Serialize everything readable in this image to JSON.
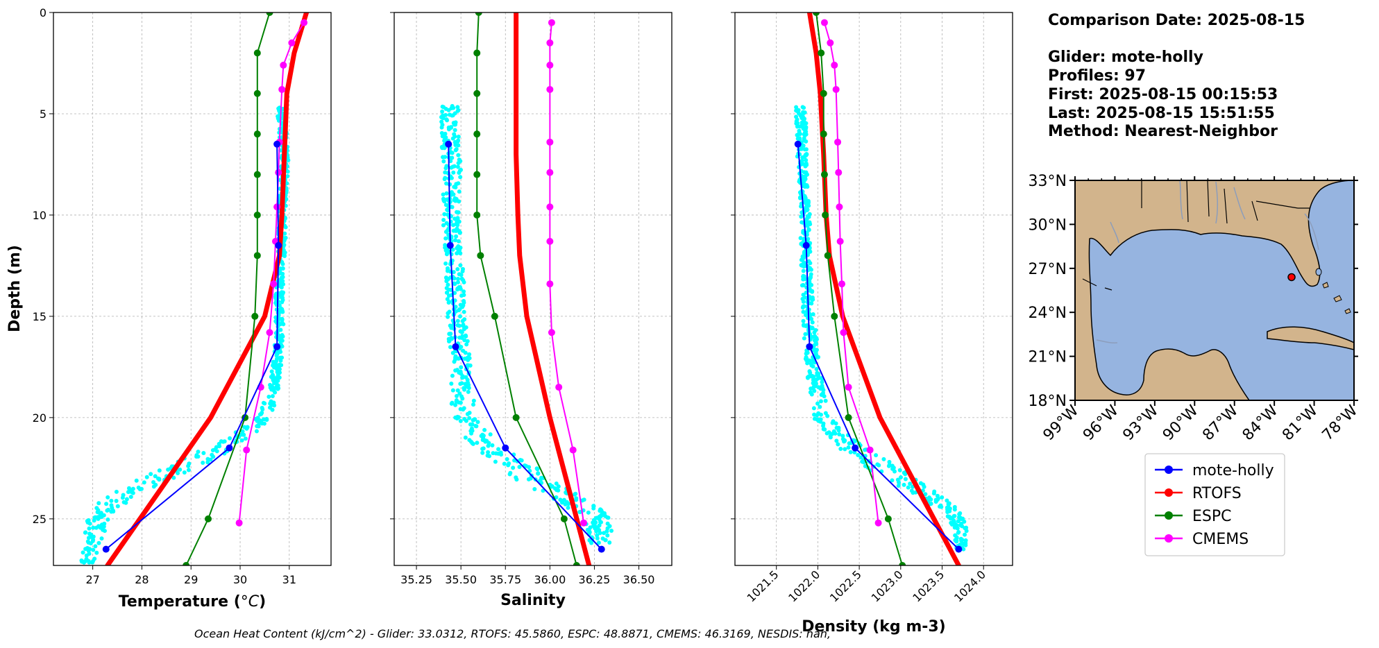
{
  "chart_data": [
    {
      "type": "line",
      "xlabel": "Temperature (°C)",
      "ylabel": "Depth (m)",
      "xlim": [
        26.2,
        31.85
      ],
      "ylim": [
        27.3,
        0
      ],
      "xticks": [
        27,
        28,
        29,
        30,
        31
      ],
      "yticks": [
        0,
        5,
        10,
        15,
        20,
        25
      ],
      "grid": true,
      "glider_scatter": {
        "name": "mote-holly",
        "color": "#00ffff",
        "segments": [
          {
            "x": [
              30.8,
              30.85,
              30.9,
              30.9,
              30.88,
              30.85,
              30.85,
              30.85,
              30.82,
              30.8,
              30.8,
              30.8,
              30.78,
              30.75,
              30.7,
              30.5,
              30.0,
              29.2,
              28.3,
              27.5,
              27.1,
              27.0,
              26.9
            ],
            "y": [
              4.6,
              5.5,
              6.5,
              7.5,
              8.5,
              9.5,
              10.5,
              11.5,
              12.5,
              13.5,
              14.5,
              15.5,
              16.5,
              17.5,
              18.5,
              20.0,
              21.0,
              22.0,
              23.0,
              24.0,
              25.0,
              26.0,
              27.2
            ],
            "spread": [
              0.08,
              0.08,
              0.08,
              0.08,
              0.08,
              0.08,
              0.08,
              0.08,
              0.08,
              0.08,
              0.08,
              0.08,
              0.08,
              0.1,
              0.1,
              0.15,
              0.25,
              0.35,
              0.35,
              0.3,
              0.25,
              0.2,
              0.15
            ]
          }
        ]
      },
      "series": [
        {
          "name": "mote-holly",
          "color": "#0000ff",
          "width": 2,
          "markers": true,
          "x": [
            30.75,
            30.78,
            30.75,
            29.78,
            27.27
          ],
          "y": [
            6.5,
            11.5,
            16.5,
            21.5,
            26.5
          ]
        },
        {
          "name": "RTOFS",
          "color": "#ff0000",
          "width": 7,
          "markers": false,
          "x": [
            31.35,
            31.1,
            30.95,
            30.9,
            30.85,
            30.8,
            30.5,
            29.4,
            27.3
          ],
          "y": [
            0,
            2,
            4,
            7,
            10,
            12,
            15,
            20,
            27.3
          ]
        },
        {
          "name": "ESPC",
          "color": "#008000",
          "width": 2,
          "markers": true,
          "x": [
            30.6,
            30.35,
            30.35,
            30.35,
            30.35,
            30.35,
            30.35,
            30.3,
            30.1,
            29.35,
            28.9
          ],
          "y": [
            0,
            2,
            4,
            6,
            8,
            10,
            12,
            15,
            20,
            25,
            27.3
          ]
        },
        {
          "name": "CMEMS",
          "color": "#ff00ff",
          "width": 2,
          "markers": true,
          "x": [
            31.3,
            31.05,
            30.88,
            30.85,
            30.8,
            30.78,
            30.75,
            30.72,
            30.68,
            30.6,
            30.42,
            30.13,
            29.98
          ],
          "y": [
            0.5,
            1.5,
            2.6,
            3.8,
            6.4,
            7.9,
            9.6,
            11.3,
            13.4,
            15.8,
            18.5,
            21.6,
            25.2
          ]
        }
      ]
    },
    {
      "type": "line",
      "xlabel": "Salinity",
      "ylabel": "",
      "xlim": [
        35.125,
        36.685
      ],
      "ylim": [
        27.3,
        0
      ],
      "xticks": [
        35.25,
        35.5,
        35.75,
        36.0,
        36.25,
        36.5
      ],
      "xticklabels": [
        "35.25",
        "35.50",
        "35.75",
        "36.00",
        "36.25",
        "36.50"
      ],
      "grid": true,
      "glider_scatter": {
        "name": "mote-holly",
        "color": "#00ffff",
        "segments": [
          {
            "x": [
              35.44,
              35.44,
              35.44,
              35.45,
              35.45,
              35.45,
              35.45,
              35.46,
              35.46,
              35.47,
              35.47,
              35.48,
              35.49,
              35.5,
              35.5,
              35.52,
              35.6,
              35.75,
              35.9,
              36.1,
              36.25,
              36.28,
              36.28
            ],
            "y": [
              4.6,
              5.5,
              6.5,
              7.5,
              8.5,
              9.5,
              10.5,
              11.5,
              12.5,
              13.5,
              14.5,
              15.5,
              16.5,
              17.5,
              18.5,
              20.0,
              21.0,
              22.0,
              23.0,
              24.0,
              24.8,
              25.5,
              26.2
            ],
            "spread": [
              0.05,
              0.05,
              0.05,
              0.05,
              0.05,
              0.05,
              0.05,
              0.05,
              0.05,
              0.05,
              0.05,
              0.05,
              0.06,
              0.06,
              0.06,
              0.07,
              0.09,
              0.1,
              0.1,
              0.09,
              0.08,
              0.07,
              0.06
            ]
          }
        ]
      },
      "series": [
        {
          "name": "mote-holly",
          "color": "#0000ff",
          "width": 2,
          "markers": true,
          "x": [
            35.43,
            35.44,
            35.47,
            35.75,
            36.29
          ],
          "y": [
            6.5,
            11.5,
            16.5,
            21.5,
            26.5
          ]
        },
        {
          "name": "RTOFS",
          "color": "#ff0000",
          "width": 7,
          "markers": false,
          "x": [
            35.81,
            35.81,
            35.81,
            35.81,
            35.82,
            35.83,
            35.87,
            36.0,
            36.22
          ],
          "y": [
            0,
            2,
            4,
            7,
            10,
            12,
            15,
            20,
            27.3
          ]
        },
        {
          "name": "ESPC",
          "color": "#008000",
          "width": 2,
          "markers": true,
          "x": [
            35.6,
            35.59,
            35.59,
            35.59,
            35.59,
            35.59,
            35.61,
            35.69,
            35.81,
            36.08,
            36.15
          ],
          "y": [
            0,
            2,
            4,
            6,
            8,
            10,
            12,
            15,
            20,
            25,
            27.3
          ]
        },
        {
          "name": "CMEMS",
          "color": "#ff00ff",
          "width": 2,
          "markers": true,
          "x": [
            36.01,
            36.0,
            36.0,
            36.0,
            36.0,
            36.0,
            36.0,
            36.0,
            36.0,
            36.01,
            36.05,
            36.13,
            36.19
          ],
          "y": [
            0.5,
            1.5,
            2.6,
            3.8,
            6.4,
            7.9,
            9.6,
            11.3,
            13.4,
            15.8,
            18.5,
            21.6,
            25.2
          ]
        }
      ]
    },
    {
      "type": "line",
      "xlabel": "Density (kg m-3)",
      "ylabel": "",
      "xlim": [
        1021.0,
        1024.35
      ],
      "ylim": [
        27.3,
        0
      ],
      "xticks": [
        1021.5,
        1022.0,
        1022.5,
        1023.0,
        1023.5,
        1024.0
      ],
      "xticklabels": [
        "1021.5",
        "1022.0",
        "1022.5",
        "1023.0",
        "1023.5",
        "1024.0"
      ],
      "grid": true,
      "glider_scatter": {
        "name": "mote-holly",
        "color": "#00ffff",
        "segments": [
          {
            "x": [
              1021.78,
              1021.8,
              1021.8,
              1021.82,
              1021.83,
              1021.84,
              1021.85,
              1021.85,
              1021.86,
              1021.87,
              1021.88,
              1021.9,
              1021.92,
              1021.95,
              1021.98,
              1022.05,
              1022.25,
              1022.6,
              1023.0,
              1023.4,
              1023.65,
              1023.72,
              1023.72
            ],
            "y": [
              4.6,
              5.5,
              6.5,
              7.5,
              8.5,
              9.5,
              10.5,
              11.5,
              12.5,
              13.5,
              14.5,
              15.5,
              16.5,
              17.5,
              18.5,
              20.0,
              21.0,
              22.0,
              23.0,
              24.0,
              24.8,
              25.5,
              26.5
            ],
            "spread": [
              0.06,
              0.06,
              0.06,
              0.06,
              0.06,
              0.06,
              0.06,
              0.06,
              0.06,
              0.06,
              0.07,
              0.07,
              0.08,
              0.09,
              0.09,
              0.1,
              0.15,
              0.2,
              0.2,
              0.15,
              0.1,
              0.08,
              0.06
            ]
          }
        ]
      },
      "series": [
        {
          "name": "mote-holly",
          "color": "#0000ff",
          "width": 2,
          "markers": true,
          "x": [
            1021.76,
            1021.86,
            1021.9,
            1022.45,
            1023.7
          ],
          "y": [
            6.5,
            11.5,
            16.5,
            21.5,
            26.5
          ]
        },
        {
          "name": "RTOFS",
          "color": "#ff0000",
          "width": 7,
          "markers": false,
          "x": [
            1021.9,
            1021.98,
            1022.03,
            1022.07,
            1022.1,
            1022.14,
            1022.3,
            1022.75,
            1023.7
          ],
          "y": [
            0,
            2,
            4,
            7,
            10,
            12,
            15,
            20,
            27.3
          ]
        },
        {
          "name": "ESPC",
          "color": "#008000",
          "width": 2,
          "markers": true,
          "x": [
            1021.98,
            1022.04,
            1022.07,
            1022.07,
            1022.08,
            1022.09,
            1022.12,
            1022.2,
            1022.37,
            1022.85,
            1023.02
          ],
          "y": [
            0,
            2,
            4,
            6,
            8,
            10,
            12,
            15,
            20,
            25,
            27.3
          ]
        },
        {
          "name": "CMEMS",
          "color": "#ff00ff",
          "width": 2,
          "markers": true,
          "x": [
            1022.08,
            1022.15,
            1022.2,
            1022.22,
            1022.24,
            1022.25,
            1022.26,
            1022.27,
            1022.29,
            1022.31,
            1022.37,
            1022.63,
            1022.73
          ],
          "y": [
            0.5,
            1.5,
            2.6,
            3.8,
            6.4,
            7.9,
            9.6,
            11.3,
            13.4,
            15.8,
            18.5,
            21.6,
            25.2
          ]
        }
      ]
    }
  ],
  "info": {
    "comparison_date": "Comparison Date: 2025-08-15",
    "glider": "Glider: mote-holly",
    "profiles": "Profiles: 97",
    "first": "First: 2025-08-15 00:15:53",
    "last": "Last: 2025-08-15 15:51:55",
    "method": "Method: Nearest-Neighbor"
  },
  "map": {
    "lon_range": [
      -99,
      -78
    ],
    "lat_range": [
      18,
      33
    ],
    "lon_ticks": [
      -99,
      -96,
      -93,
      -90,
      -87,
      -84,
      -81,
      -78
    ],
    "lon_labels": [
      "99°W",
      "96°W",
      "93°W",
      "90°W",
      "87°W",
      "84°W",
      "81°W",
      "78°W"
    ],
    "lat_ticks": [
      33,
      30,
      27,
      24,
      21,
      18
    ],
    "lat_labels": [
      "33°N",
      "30°N",
      "27°N",
      "24°N",
      "21°N",
      "18°N"
    ],
    "glider_position": {
      "lon": -82.7,
      "lat": 26.4
    },
    "ocean_color": "#96b4e0",
    "land_color": "#d2b48c",
    "marker_color": "#ff0000"
  },
  "legend": [
    {
      "label": "mote-holly",
      "color": "#0000ff"
    },
    {
      "label": "RTOFS",
      "color": "#ff0000"
    },
    {
      "label": "ESPC",
      "color": "#008000"
    },
    {
      "label": "CMEMS",
      "color": "#ff00ff"
    }
  ],
  "footer": "Ocean Heat Content (kJ/cm^2) - Glider: 33.0312,  RTOFS: 45.5860,  ESPC: 48.8871,  CMEMS: 46.3169,  NESDIS: nan,"
}
